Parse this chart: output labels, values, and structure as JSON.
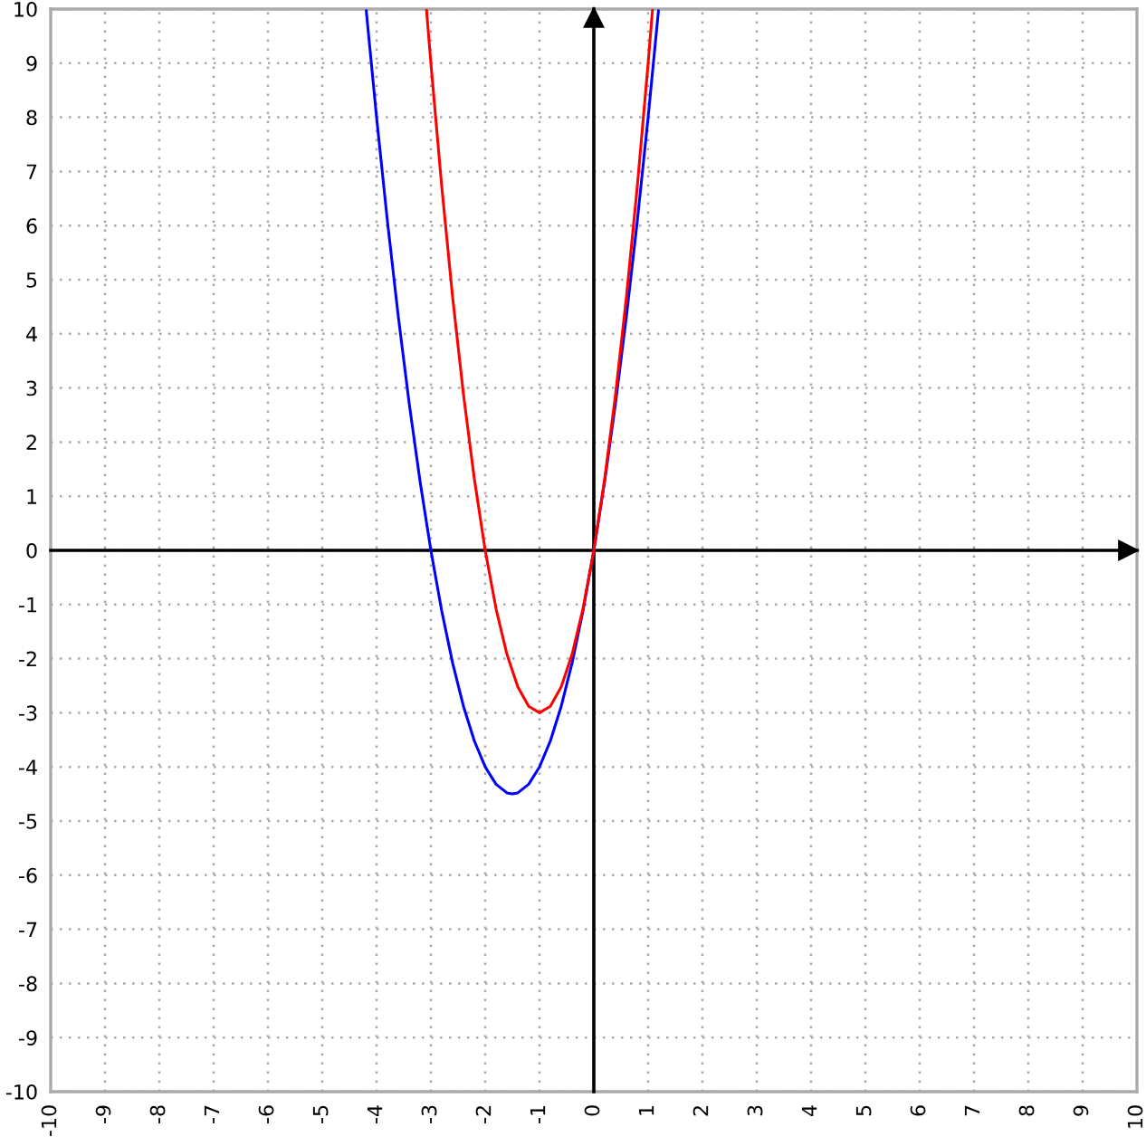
{
  "chart_data": {
    "type": "line",
    "xlim": [
      -10,
      10
    ],
    "ylim": [
      -10,
      10
    ],
    "xticks": [
      -10,
      -9,
      -8,
      -7,
      -6,
      -5,
      -4,
      -3,
      -2,
      -1,
      0,
      1,
      2,
      3,
      4,
      5,
      6,
      7,
      8,
      9,
      10
    ],
    "yticks": [
      -10,
      -9,
      -8,
      -7,
      -6,
      -5,
      -4,
      -3,
      -2,
      -1,
      0,
      1,
      2,
      3,
      4,
      5,
      6,
      7,
      8,
      9,
      10
    ],
    "grid": true,
    "line_style": "solid",
    "series": [
      {
        "color": "#0000ff",
        "x": [
          -4.19,
          -4.0,
          -3.8,
          -3.6,
          -3.4,
          -3.2,
          -3.0,
          -2.8,
          -2.6,
          -2.4,
          -2.2,
          -2.0,
          -1.8,
          -1.6,
          -1.5,
          -1.4,
          -1.2,
          -1.0,
          -0.8,
          -0.6,
          -0.4,
          -0.2,
          0,
          0.2,
          0.4,
          0.6,
          0.8,
          1.0,
          1.19
        ],
        "values": [
          9.97,
          8,
          6.08,
          4.32,
          2.72,
          1.28,
          0,
          -1.12,
          -2.08,
          -2.88,
          -3.52,
          -4,
          -4.32,
          -4.48,
          -4.5,
          -4.48,
          -4.32,
          -4,
          -3.52,
          -2.88,
          -2.08,
          -1.12,
          0,
          1.28,
          2.72,
          4.32,
          6.08,
          8,
          9.97
        ]
      },
      {
        "color": "#ff0000",
        "x": [
          -3.08,
          -3.0,
          -2.8,
          -2.6,
          -2.4,
          -2.2,
          -2.0,
          -1.8,
          -1.6,
          -1.4,
          -1.2,
          -1.0,
          -0.8,
          -0.6,
          -0.4,
          -0.2,
          0,
          0.2,
          0.4,
          0.6,
          0.8,
          1.0,
          1.08
        ],
        "values": [
          9.98,
          9,
          6.72,
          4.68,
          2.88,
          1.32,
          0,
          -1.08,
          -1.92,
          -2.52,
          -2.88,
          -3,
          -2.88,
          -2.52,
          -1.92,
          -1.08,
          0,
          1.32,
          2.88,
          4.68,
          6.72,
          9,
          9.98
        ]
      }
    ]
  }
}
